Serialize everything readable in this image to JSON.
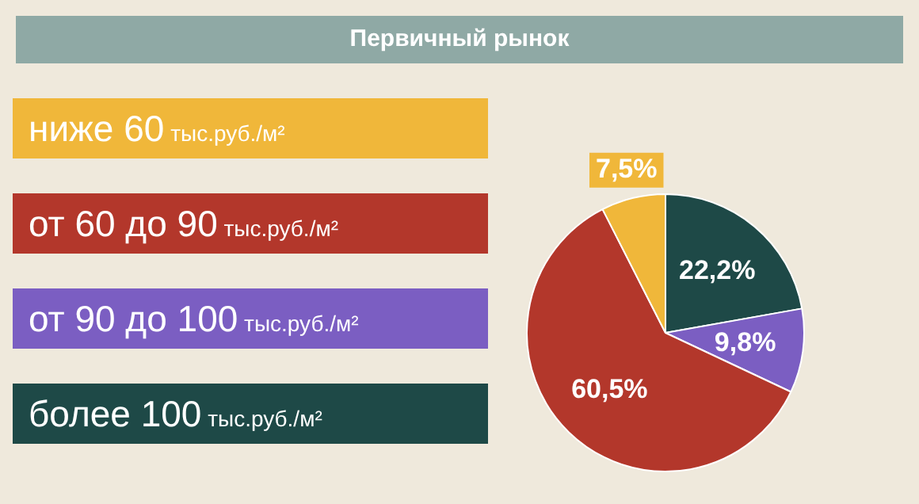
{
  "chart_data": {
    "type": "pie",
    "title": "Первичный рынок",
    "categories": [
      "ниже 60 тыс.руб./м²",
      "от 60 до 90 тыс.руб./м²",
      "от 90 до 100 тыс.руб./м²",
      "более 100 тыс.руб./м²"
    ],
    "values": [
      7.5,
      60.5,
      9.8,
      22.2
    ],
    "colors": [
      "#f0b73a",
      "#b3372b",
      "#7b5ec2",
      "#1e4947"
    ],
    "value_labels": [
      "7,5%",
      "60,5%",
      "9,8%",
      "22,2%"
    ],
    "legend": "left"
  }
}
